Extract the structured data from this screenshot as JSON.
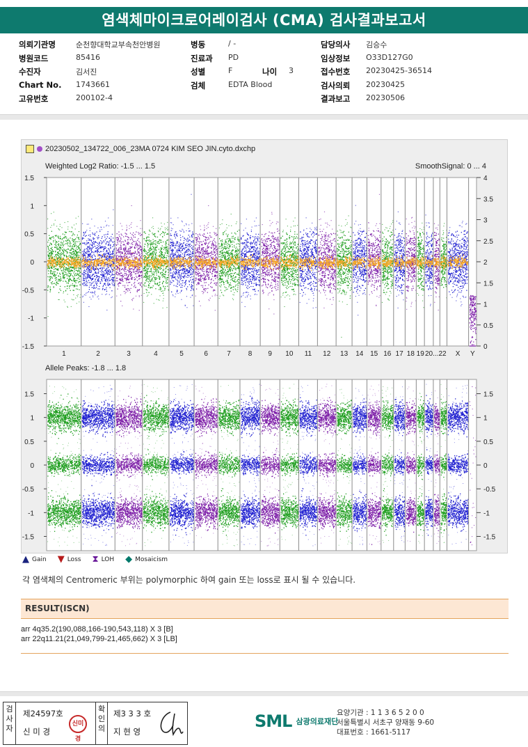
{
  "title": "염색체마이크로어레이검사 (CMA) 검사결과보고서",
  "info": {
    "rows": [
      {
        "l1": "의뢰기관명",
        "v1": "순천향대학교부속천안병원",
        "l2": "병동",
        "v2": "/ -",
        "l3": "",
        "v3": "",
        "l4": "담당의사",
        "v4": "김승수"
      },
      {
        "l1": "병원코드",
        "v1": "85416",
        "l2": "진료과",
        "v2": "PD",
        "l3": "",
        "v3": "",
        "l4": "임상정보",
        "v4": "O33D127G0"
      },
      {
        "l1": "수진자",
        "v1": "김서진",
        "l2": "성별",
        "v2": "F",
        "l3": "나이",
        "v3": "3",
        "l4": "접수번호",
        "v4": "20230425-36514"
      },
      {
        "l1": "Chart No.",
        "v1": "1743661",
        "l2": "검체",
        "v2": "EDTA Blood",
        "l3": "",
        "v3": "",
        "l4": "검사의뢰",
        "v4": "20230425"
      },
      {
        "l1": "고유번호",
        "v1": "200102-4",
        "l2": "",
        "v2": "",
        "l3": "",
        "v3": "",
        "l4": "결과보고",
        "v4": "20230506"
      }
    ]
  },
  "plot": {
    "filename": "20230502_134722_006_23MA 0724 KIM SEO JIN.cyto.dxchp",
    "top_left_label": "Weighted Log2 Ratio: -1.5 ... 1.5",
    "top_right_label": "SmoothSignal: 0 ... 4",
    "bottom_label": "Allele Peaks: -1.8 ... 1.8",
    "chromosomes": [
      "1",
      "2",
      "3",
      "4",
      "5",
      "6",
      "7",
      "8",
      "9",
      "10",
      "11",
      "12",
      "13",
      "14",
      "15",
      "16",
      "17",
      "18",
      "19",
      "20",
      "21",
      "22",
      "X",
      "Y"
    ],
    "chromosome_axis_labels": [
      "1",
      "2",
      "3",
      "4",
      "5",
      "6",
      "7",
      "8",
      "9",
      "10",
      "11",
      "12",
      "13",
      "14",
      "15",
      "16",
      "17",
      "18",
      "19",
      "20...22",
      "X",
      "Y"
    ],
    "chromosome_sizes": [
      249,
      243,
      198,
      191,
      181,
      171,
      159,
      146,
      141,
      136,
      135,
      134,
      115,
      107,
      102,
      90,
      83,
      80,
      59,
      64,
      47,
      51,
      156,
      57
    ],
    "colors": {
      "green": "#1f9e1f",
      "blue": "#1f1fd0",
      "purple": "#7d1fa8",
      "orange": "#f5a623"
    },
    "top_left_ticks": [
      "1.5",
      "1",
      "0.5",
      "0",
      "-0.5",
      "-1",
      "-1.5"
    ],
    "top_right_ticks": [
      "4",
      "3.5",
      "3",
      "2.5",
      "2",
      "1.5",
      "1",
      "0.5",
      "0"
    ],
    "bottom_left_ticks": [
      "1.5",
      "1",
      "0.5",
      "0",
      "-0.5",
      "-1",
      "-1.5"
    ],
    "bottom_right_ticks": [
      "1.5",
      "1",
      "0.5",
      "0",
      "-0.5",
      "-1",
      "-1.5"
    ]
  },
  "legend": [
    {
      "icon": "gain-icon",
      "symbol": "▲",
      "label": "Gain",
      "color": "#1a237e"
    },
    {
      "icon": "loss-icon",
      "symbol": "▼",
      "label": "Loss",
      "color": "#b71c1c"
    },
    {
      "icon": "loh-icon",
      "symbol": "⧗",
      "label": "LOH",
      "color": "#6a1b9a"
    },
    {
      "icon": "mosaicism-icon",
      "symbol": "◆",
      "label": "Mosaicism",
      "color": "#00796b"
    }
  ],
  "note": "각 염색체의 Centromeric 부위는 polymorphic 하여 gain 또는 loss로 표시 될 수 있습니다.",
  "result": {
    "heading": "RESULT(ISCN)",
    "lines": [
      "arr 4q35.2(190,088,166-190,543,118) X 3 [B]",
      "arr 22q11.21(21,049,799-21,465,662) X 3 [LB]"
    ]
  },
  "signatures": {
    "examiner_label": "검사자",
    "examiner_no": "제24597호",
    "examiner_name": "신 미 경",
    "examiner_stamp": "신미경",
    "confirmer_label": "확인의",
    "confirmer_no": "제3 3 3 호",
    "confirmer_name": "지 현 영"
  },
  "org": {
    "logo": "SML",
    "name": "삼광의료재단",
    "code": "요양기관 : 1 1 3 6 5 2 0 0",
    "address": "서울특별시 서초구 양재동 9-60",
    "phone": "대표번호 : 1661-5117"
  }
}
